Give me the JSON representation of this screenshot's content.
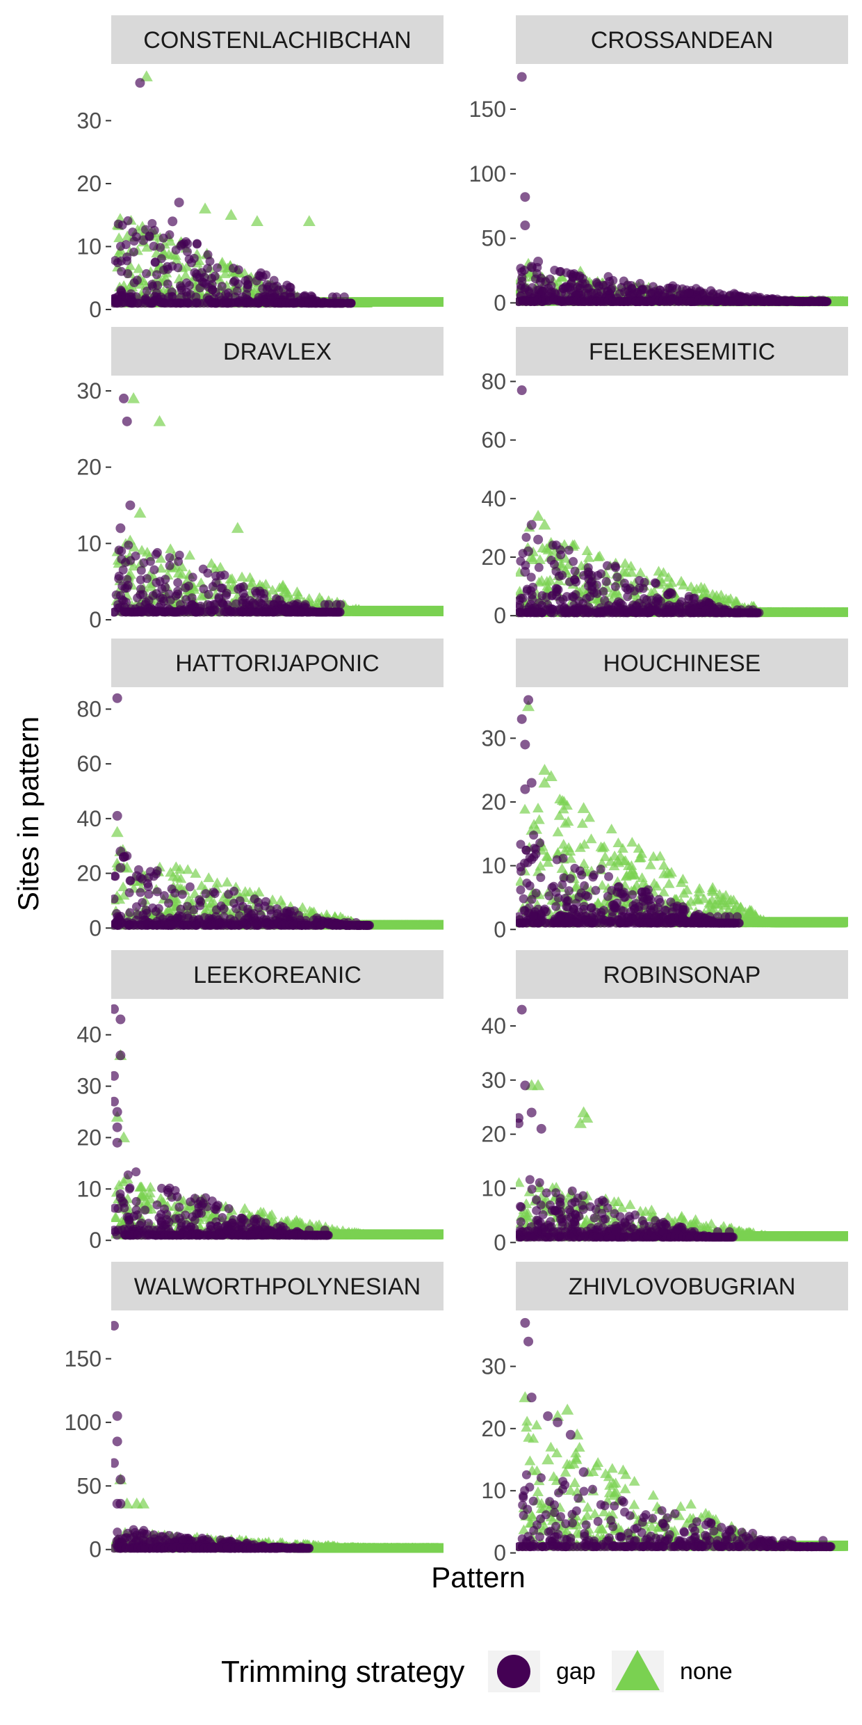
{
  "chart_data": {
    "type": "scatter",
    "xlabel": "Pattern",
    "ylabel": "Sites in pattern",
    "legend": {
      "title": "Trimming strategy",
      "placement": "bottom",
      "entries": [
        {
          "name": "gap",
          "shape": "circle",
          "color": "#440154"
        },
        {
          "name": "none",
          "shape": "triangle",
          "color": "#7AD151"
        }
      ]
    },
    "grid": false,
    "x_ticks": false,
    "panels": [
      {
        "title": "CONSTENLACHIBCHAN",
        "ylim": [
          -1,
          39
        ],
        "yticks": [
          0,
          10,
          20,
          30
        ],
        "gap": {
          "n": 360,
          "peak": 17,
          "maxIndex": 0.73,
          "outliers": [
            [
              0.08,
              36
            ],
            [
              0.2,
              17
            ],
            [
              0.18,
              14
            ],
            [
              0.09,
              11
            ]
          ]
        },
        "none": {
          "n": 540,
          "peak": 16,
          "maxIndex": 0.78,
          "outliers": [
            [
              0.1,
              37
            ],
            [
              0.28,
              16
            ],
            [
              0.36,
              15
            ],
            [
              0.44,
              14
            ],
            [
              0.6,
              14
            ]
          ]
        }
      },
      {
        "title": "CROSSANDEAN",
        "ylim": [
          -10,
          185
        ],
        "yticks": [
          0,
          50,
          100,
          150
        ],
        "gap": {
          "n": 520,
          "peak": 30,
          "maxIndex": 0.95,
          "outliers": [
            [
              0.01,
              175
            ],
            [
              0.02,
              82
            ],
            [
              0.02,
              60
            ],
            [
              0.06,
              32
            ],
            [
              0.04,
              28
            ]
          ]
        },
        "none": {
          "n": 700,
          "peak": 25,
          "maxIndex": 1.0,
          "outliers": [
            [
              0.03,
              30
            ],
            [
              0.19,
              24
            ],
            [
              0.05,
              22
            ]
          ]
        }
      },
      {
        "title": "DRAVLEX",
        "ylim": [
          -1,
          32
        ],
        "yticks": [
          0,
          10,
          20,
          30
        ],
        "gap": {
          "n": 320,
          "peak": 12,
          "maxIndex": 0.7,
          "outliers": [
            [
              0.03,
              29
            ],
            [
              0.04,
              26
            ],
            [
              0.05,
              15
            ],
            [
              0.02,
              12
            ]
          ]
        },
        "none": {
          "n": 480,
          "peak": 12,
          "maxIndex": 1.0,
          "outliers": [
            [
              0.06,
              29
            ],
            [
              0.14,
              26
            ],
            [
              0.08,
              14
            ],
            [
              0.38,
              12
            ]
          ]
        }
      },
      {
        "title": "FELEKESEMITIC",
        "ylim": [
          -4,
          82
        ],
        "yticks": [
          0,
          20,
          40,
          60,
          80
        ],
        "gap": {
          "n": 380,
          "peak": 30,
          "maxIndex": 0.74,
          "outliers": [
            [
              0.01,
              77
            ],
            [
              0.04,
              31
            ],
            [
              0.06,
              26
            ],
            [
              0.03,
              22
            ],
            [
              0.02,
              15
            ]
          ]
        },
        "none": {
          "n": 560,
          "peak": 33,
          "maxIndex": 1.0,
          "outliers": [
            [
              0.06,
              34
            ],
            [
              0.08,
              31
            ],
            [
              0.1,
              24
            ],
            [
              0.04,
              20
            ]
          ]
        }
      },
      {
        "title": "HATTORIJAPONIC",
        "ylim": [
          -4,
          88
        ],
        "yticks": [
          0,
          20,
          40,
          60,
          80
        ],
        "gap": {
          "n": 360,
          "peak": 28,
          "maxIndex": 0.79,
          "outliers": [
            [
              0.01,
              84
            ],
            [
              0.01,
              41
            ],
            [
              0.02,
              28
            ],
            [
              0.03,
              26
            ],
            [
              0.02,
              22
            ],
            [
              0.07,
              19
            ]
          ]
        },
        "none": {
          "n": 560,
          "peak": 30,
          "maxIndex": 1.0,
          "outliers": [
            [
              0.01,
              35
            ],
            [
              0.02,
              28
            ],
            [
              0.04,
              22
            ],
            [
              0.09,
              19
            ]
          ]
        }
      },
      {
        "title": "HOUCHINESE",
        "ylim": [
          -1.5,
          38
        ],
        "yticks": [
          0,
          10,
          20,
          30
        ],
        "gap": {
          "n": 420,
          "peak": 16,
          "maxIndex": 0.68,
          "outliers": [
            [
              0.03,
              36
            ],
            [
              0.01,
              33
            ],
            [
              0.02,
              29
            ],
            [
              0.04,
              23
            ],
            [
              0.02,
              22
            ]
          ]
        },
        "none": {
          "n": 620,
          "peak": 25,
          "maxIndex": 1.0,
          "outliers": [
            [
              0.03,
              35
            ],
            [
              0.08,
              25
            ],
            [
              0.1,
              24
            ],
            [
              0.08,
              23
            ],
            [
              0.2,
              19
            ]
          ]
        }
      },
      {
        "title": "LEEKOREANIC",
        "ylim": [
          -2,
          47
        ],
        "yticks": [
          0,
          10,
          20,
          30,
          40
        ],
        "gap": {
          "n": 380,
          "peak": 15,
          "maxIndex": 0.66,
          "outliers": [
            [
              0.0,
              45
            ],
            [
              0.02,
              43
            ],
            [
              0.02,
              36
            ],
            [
              0.0,
              32
            ],
            [
              0.0,
              27
            ],
            [
              0.01,
              25
            ],
            [
              0.01,
              22
            ],
            [
              0.01,
              19
            ]
          ]
        },
        "none": {
          "n": 540,
          "peak": 12,
          "maxIndex": 1.0,
          "outliers": [
            [
              0.02,
              36
            ],
            [
              0.01,
              24
            ],
            [
              0.03,
              20
            ],
            [
              0.04,
              12
            ]
          ]
        }
      },
      {
        "title": "ROBINSONAP",
        "ylim": [
          -1.5,
          45
        ],
        "yticks": [
          0,
          10,
          20,
          30,
          40
        ],
        "gap": {
          "n": 380,
          "peak": 13,
          "maxIndex": 0.66,
          "outliers": [
            [
              0.01,
              43
            ],
            [
              0.02,
              29
            ],
            [
              0.04,
              24
            ],
            [
              0.0,
              23
            ],
            [
              0.0,
              22
            ],
            [
              0.07,
              21
            ]
          ]
        },
        "none": {
          "n": 580,
          "peak": 12,
          "maxIndex": 1.0,
          "outliers": [
            [
              0.04,
              29
            ],
            [
              0.06,
              29
            ],
            [
              0.2,
              24
            ],
            [
              0.21,
              23
            ],
            [
              0.19,
              22
            ]
          ]
        }
      },
      {
        "title": "WALWORTHPOLYNESIAN",
        "ylim": [
          -10,
          188
        ],
        "yticks": [
          0,
          50,
          100,
          150
        ],
        "gap": {
          "n": 360,
          "peak": 18,
          "maxIndex": 0.6,
          "outliers": [
            [
              0.0,
              176
            ],
            [
              0.01,
              105
            ],
            [
              0.01,
              85
            ],
            [
              0.0,
              68
            ],
            [
              0.02,
              55
            ],
            [
              0.01,
              36
            ],
            [
              0.02,
              36
            ]
          ]
        },
        "none": {
          "n": 600,
          "peak": 14,
          "maxIndex": 1.0,
          "outliers": [
            [
              0.02,
              55
            ],
            [
              0.04,
              36
            ],
            [
              0.09,
              36
            ],
            [
              0.07,
              36
            ]
          ]
        }
      },
      {
        "title": "ZHIVLOVOBUGRIAN",
        "ylim": [
          -1.5,
          39
        ],
        "yticks": [
          0,
          10,
          20,
          30
        ],
        "gap": {
          "n": 300,
          "peak": 14,
          "maxIndex": 0.97,
          "outliers": [
            [
              0.02,
              37
            ],
            [
              0.03,
              34
            ],
            [
              0.04,
              25
            ],
            [
              0.09,
              22
            ],
            [
              0.12,
              21
            ],
            [
              0.16,
              19
            ],
            [
              0.2,
              13
            ]
          ]
        },
        "none": {
          "n": 480,
          "peak": 23,
          "maxIndex": 1.0,
          "outliers": [
            [
              0.02,
              25
            ],
            [
              0.15,
              23
            ],
            [
              0.18,
              19
            ],
            [
              0.12,
              22
            ],
            [
              0.09,
              15
            ]
          ]
        }
      }
    ]
  }
}
